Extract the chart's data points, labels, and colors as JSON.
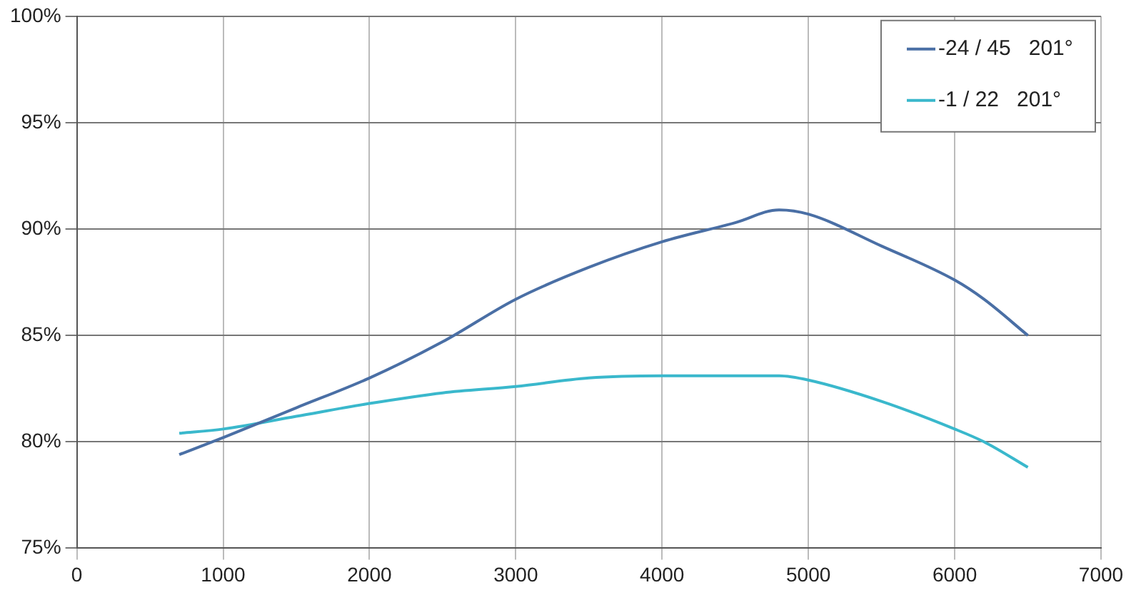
{
  "chart_data": {
    "type": "line",
    "x": [
      700,
      1000,
      1500,
      2000,
      2500,
      3000,
      3500,
      4000,
      4500,
      4800,
      5000,
      5500,
      6000,
      6200,
      6500
    ],
    "series": [
      {
        "name": "-24 / 45   201°",
        "color": "#4a6fa5",
        "values": [
          79.4,
          80.2,
          81.6,
          83.0,
          84.7,
          86.7,
          88.2,
          89.4,
          90.3,
          90.9,
          90.7,
          89.2,
          87.6,
          86.7,
          85.0
        ]
      },
      {
        "name": "-1 / 22   201°",
        "color": "#3ab8cc",
        "values": [
          80.4,
          80.6,
          81.2,
          81.8,
          82.3,
          82.6,
          83.0,
          83.1,
          83.1,
          83.1,
          82.9,
          81.9,
          80.6,
          80.0,
          78.8
        ]
      }
    ],
    "xlim": [
      0,
      7000
    ],
    "xticks": [
      0,
      1000,
      2000,
      3000,
      4000,
      5000,
      6000,
      7000
    ],
    "ylim": [
      75,
      100
    ],
    "yticks": [
      {
        "value": 75,
        "label": "75%"
      },
      {
        "value": 80,
        "label": "80%"
      },
      {
        "value": 85,
        "label": "85%"
      },
      {
        "value": 90,
        "label": "90%"
      },
      {
        "value": 95,
        "label": "95%"
      },
      {
        "value": 100,
        "label": "100%"
      }
    ],
    "grid": true,
    "legend": "top right",
    "marker": "none",
    "line_style": "solid"
  }
}
